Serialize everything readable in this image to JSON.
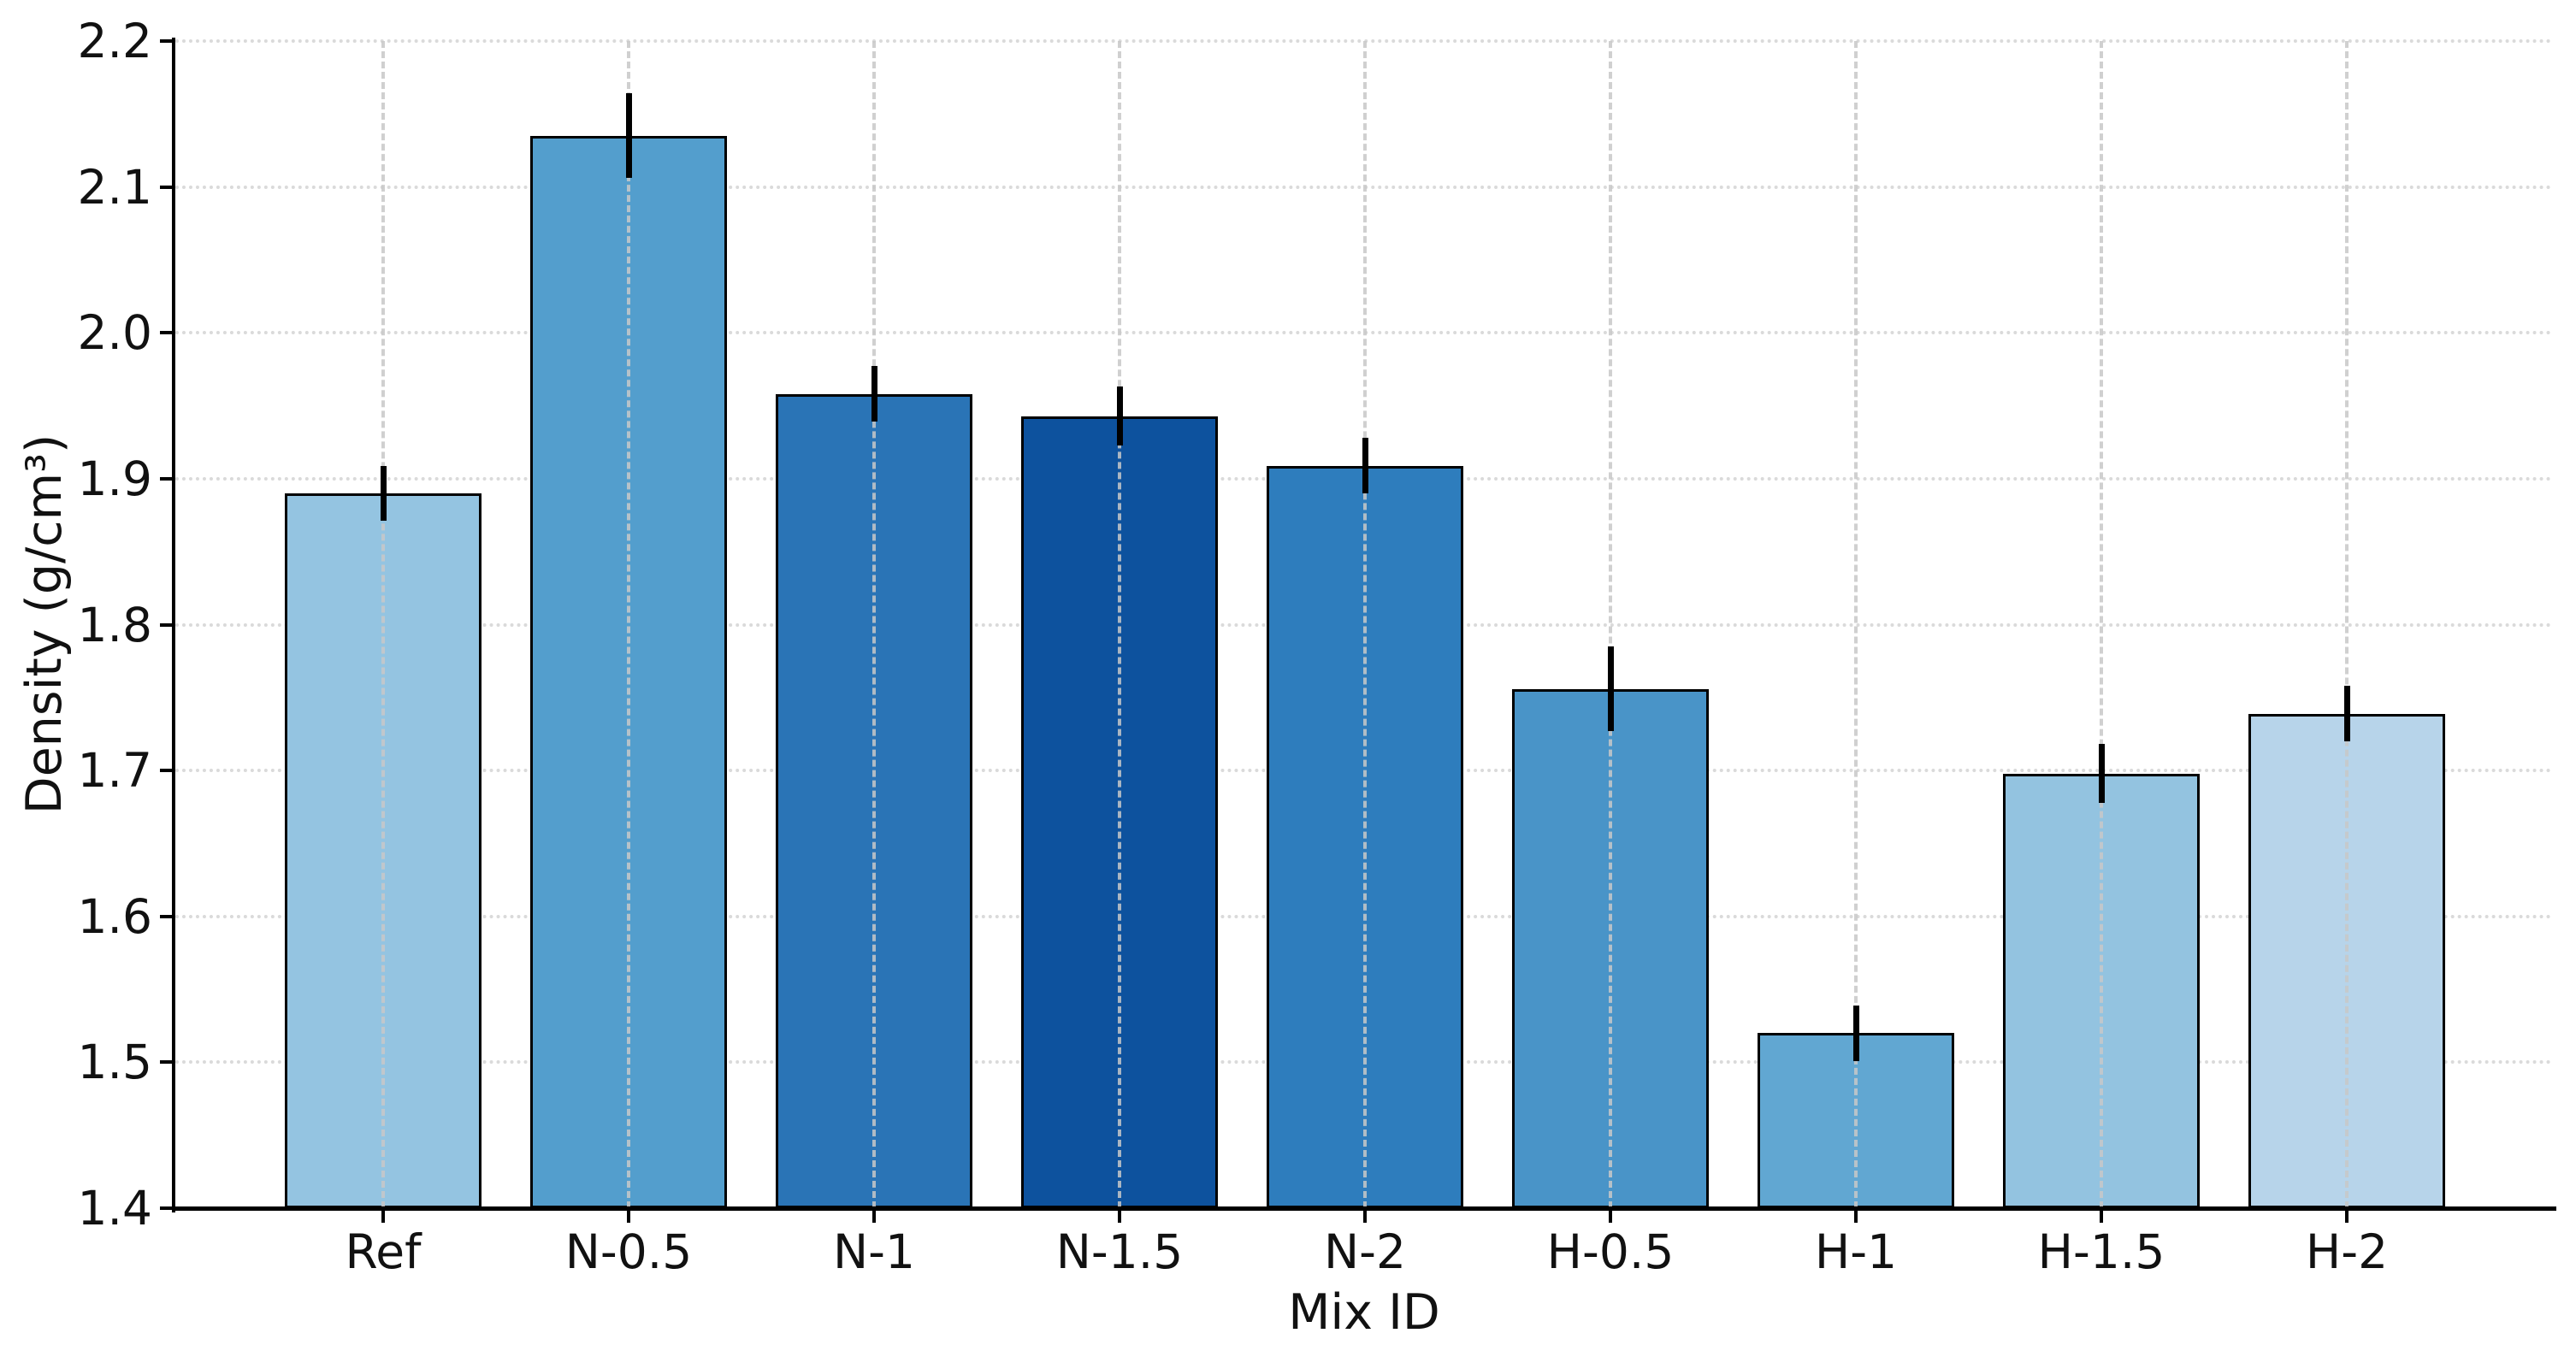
{
  "chart_data": {
    "type": "bar",
    "title": "",
    "xlabel": "Mix ID",
    "ylabel": "Density (g/cm³)",
    "ylim": [
      1.4,
      2.2
    ],
    "yticks": [
      "1.4",
      "1.5",
      "1.6",
      "1.7",
      "1.8",
      "1.9",
      "2.0",
      "2.1",
      "2.2"
    ],
    "categories": [
      "Ref",
      "N-0.5",
      "N-1",
      "N-1.5",
      "N-2",
      "H-0.5",
      "H-1",
      "H-1.5",
      "H-2"
    ],
    "values": [
      1.89,
      2.135,
      1.958,
      1.943,
      1.909,
      1.756,
      1.52,
      1.698,
      1.739
    ],
    "errors": [
      0.019,
      0.029,
      0.019,
      0.02,
      0.019,
      0.029,
      0.019,
      0.02,
      0.019
    ],
    "bar_colors": [
      "#94c4e1",
      "#539ecd",
      "#2a74b6",
      "#0d529e",
      "#2e7dbd",
      "#4994c8",
      "#61a7d2",
      "#93c3e0",
      "#b7d4ea"
    ],
    "bar_edge_color": "#000000",
    "error_bar_color": "#000000",
    "grid": {
      "horizontal_style": "dotted",
      "vertical_style": "dashed",
      "color": "#cccccc"
    },
    "legend": "none"
  }
}
